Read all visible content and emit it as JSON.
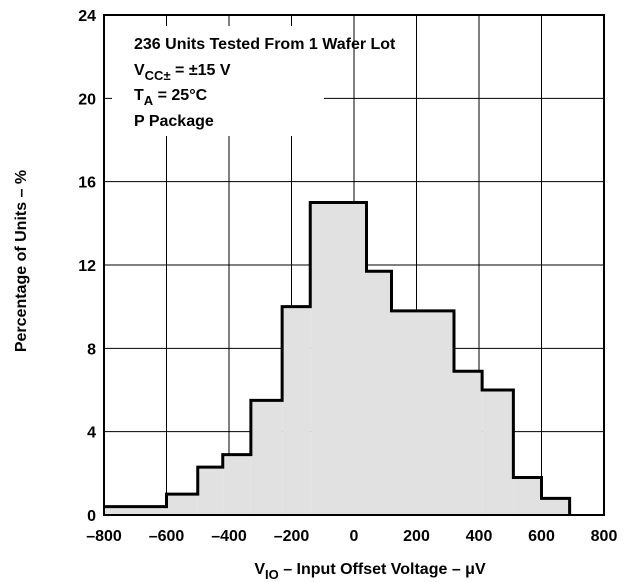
{
  "chart_data": {
    "type": "bar",
    "subtype": "histogram",
    "xlabel_main": "V",
    "xlabel_sub": "IO",
    "xlabel_rest": " – Input Offset Voltage – μV",
    "ylabel": "Percentage of Units – %",
    "xlim": [
      -800,
      800
    ],
    "ylim": [
      0,
      24
    ],
    "xticks": [
      -800,
      -600,
      -400,
      -200,
      0,
      200,
      400,
      600,
      800
    ],
    "xtick_labels": [
      "–800",
      "–600",
      "–400",
      "–200",
      "0",
      "200",
      "400",
      "600",
      "800"
    ],
    "yticks": [
      0,
      4,
      8,
      12,
      16,
      20,
      24
    ],
    "ytick_labels": [
      "0",
      "4",
      "8",
      "12",
      "16",
      "20",
      "24"
    ],
    "grid": true,
    "bins": [
      {
        "x0": -800,
        "x1": -600,
        "value": 0.4
      },
      {
        "x0": -600,
        "x1": -500,
        "value": 1.0
      },
      {
        "x0": -500,
        "x1": -420,
        "value": 2.3
      },
      {
        "x0": -420,
        "x1": -330,
        "value": 2.9
      },
      {
        "x0": -330,
        "x1": -230,
        "value": 5.5
      },
      {
        "x0": -230,
        "x1": -140,
        "value": 10.0
      },
      {
        "x0": -140,
        "x1": 40,
        "value": 15.0
      },
      {
        "x0": 40,
        "x1": 120,
        "value": 11.7
      },
      {
        "x0": 120,
        "x1": 320,
        "value": 9.8
      },
      {
        "x0": 320,
        "x1": 410,
        "value": 6.9
      },
      {
        "x0": 410,
        "x1": 510,
        "value": 6.0
      },
      {
        "x0": 510,
        "x1": 600,
        "value": 1.8
      },
      {
        "x0": 600,
        "x1": 690,
        "value": 0.8
      }
    ],
    "annotations": {
      "line1": "236 Units Tested From 1 Wafer Lot",
      "line2_main": "V",
      "line2_sub": "CC±",
      "line2_rest": " = ±15 V",
      "line3_main": "T",
      "line3_sub": "A",
      "line3_rest": " = 25°C",
      "line4": "P Package"
    },
    "colors": {
      "fill": "#e1e1e1",
      "outline": "#000000",
      "grid": "#000000"
    }
  }
}
